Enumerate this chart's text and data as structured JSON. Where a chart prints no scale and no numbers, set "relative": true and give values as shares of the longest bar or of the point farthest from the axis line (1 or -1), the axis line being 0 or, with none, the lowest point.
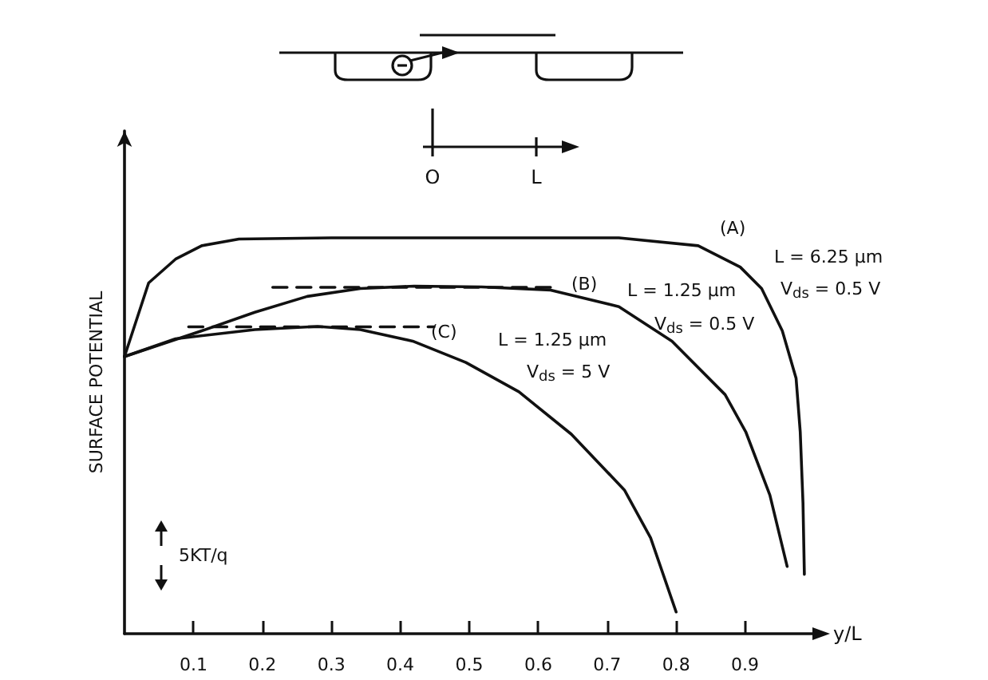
{
  "chart_data": {
    "type": "line",
    "relative": true,
    "xlabel": "y/L",
    "ylabel": "SURFACE POTENTIAL",
    "xlim": [
      0,
      1
    ],
    "xticks": [
      0.1,
      0.2,
      0.3,
      0.4,
      0.5,
      0.6,
      0.7,
      0.8,
      0.9
    ],
    "series": [
      {
        "color": "#111111",
        "line_style": "solid",
        "x": [
          0,
          0.035,
          0.074,
          0.112,
          0.166,
          0.3,
          0.5,
          0.717,
          0.832,
          0.893,
          0.924,
          0.954,
          0.974,
          0.98,
          0.984,
          0.986
        ],
        "values": [
          0.7,
          0.886,
          0.946,
          0.98,
          0.997,
          1,
          1,
          1,
          0.98,
          0.926,
          0.872,
          0.765,
          0.645,
          0.51,
          0.33,
          0.15
        ]
      },
      {
        "color": "#111111",
        "line_style": "solid",
        "x": [
          0,
          0.112,
          0.189,
          0.265,
          0.342,
          0.42,
          0.518,
          0.618,
          0.717,
          0.794,
          0.871,
          0.901,
          0.936,
          0.961
        ],
        "values": [
          0.7,
          0.765,
          0.812,
          0.852,
          0.872,
          0.878,
          0.876,
          0.868,
          0.826,
          0.739,
          0.604,
          0.51,
          0.35,
          0.17
        ]
      },
      {
        "color": "#111111",
        "line_style": "solid",
        "x": [
          0,
          0.074,
          0.189,
          0.28,
          0.342,
          0.418,
          0.495,
          0.572,
          0.648,
          0.725,
          0.763,
          0.8
        ],
        "values": [
          0.7,
          0.745,
          0.768,
          0.776,
          0.768,
          0.739,
          0.685,
          0.611,
          0.504,
          0.363,
          0.242,
          0.055
        ]
      },
      {
        "color": "#111111",
        "line_style": "dashed",
        "x": [
          0.215,
          0.618
        ],
        "values": [
          0.875,
          0.875
        ]
      },
      {
        "color": "#111111",
        "line_style": "dashed",
        "x": [
          0.093,
          0.449
        ],
        "values": [
          0.775,
          0.775
        ]
      }
    ],
    "annotations": [
      "(A)",
      "L = 6.25 μm",
      "V$_{ds}$ = 0.5 V",
      "(B)",
      "L = 1.25 μm",
      "V$_{ds}$ = 0.5 V",
      "(C)",
      "L = 1.25 μm",
      "V$_{ds}$ = 5 V",
      "5KT/q",
      "O",
      "L"
    ],
    "marker": "none",
    "grid": false
  }
}
